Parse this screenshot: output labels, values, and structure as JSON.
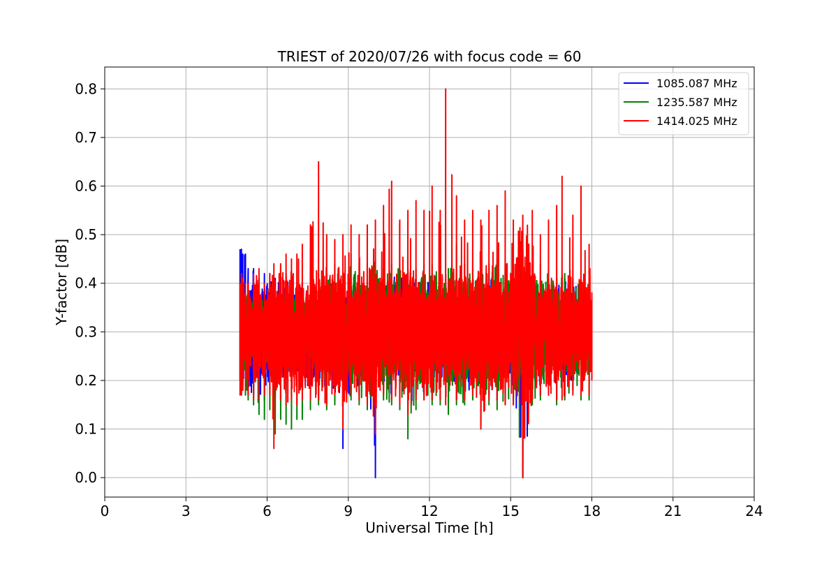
{
  "chart_data": {
    "type": "line",
    "title": "TRIEST of 2020/07/26 with focus code = 60",
    "xlabel": "Universal Time [h]",
    "ylabel": "Y-factor [dB]",
    "xlim": [
      0,
      24
    ],
    "ylim": [
      -0.04,
      0.845
    ],
    "xticks": [
      0,
      3,
      6,
      9,
      12,
      15,
      18,
      21,
      24
    ],
    "xtick_labels": [
      "0",
      "3",
      "6",
      "9",
      "12",
      "15",
      "18",
      "21",
      "24"
    ],
    "yticks": [
      0.0,
      0.1,
      0.2,
      0.3,
      0.4,
      0.5,
      0.6,
      0.7,
      0.8
    ],
    "ytick_labels": [
      "0.0",
      "0.1",
      "0.2",
      "0.3",
      "0.4",
      "0.5",
      "0.6",
      "0.7",
      "0.8"
    ],
    "grid": true,
    "legend_position": "top-right",
    "series": [
      {
        "name": "1085.087 MHz",
        "color": "#0000ff",
        "x": [
          5.0,
          5.05,
          5.1,
          5.2,
          5.3,
          5.5,
          5.7,
          5.9,
          6.1,
          6.3,
          6.5,
          6.7,
          6.9,
          7.1,
          7.3,
          7.6,
          7.9,
          8.2,
          8.5,
          8.8,
          9.1,
          9.4,
          9.7,
          10.0,
          10.3,
          10.6,
          10.9,
          11.2,
          11.5,
          11.8,
          12.1,
          12.4,
          12.7,
          13.0,
          13.3,
          13.6,
          13.9,
          14.2,
          14.5,
          14.8,
          15.1,
          15.45,
          15.8,
          16.1,
          16.4,
          16.7,
          17.0,
          17.3,
          17.6,
          17.9,
          18.0
        ],
        "low": [
          0.2,
          0.18,
          0.19,
          0.18,
          0.17,
          0.17,
          0.17,
          0.16,
          0.18,
          0.17,
          0.16,
          0.18,
          0.17,
          0.17,
          0.18,
          0.17,
          0.16,
          0.16,
          0.18,
          0.06,
          0.18,
          0.17,
          0.16,
          0.0,
          0.18,
          0.17,
          0.16,
          0.14,
          0.17,
          0.17,
          0.16,
          0.16,
          0.14,
          0.16,
          0.17,
          0.18,
          0.16,
          0.17,
          0.16,
          0.16,
          0.16,
          0.0,
          0.16,
          0.17,
          0.18,
          0.16,
          0.17,
          0.18,
          0.17,
          0.2,
          0.23
        ],
        "high": [
          0.47,
          0.47,
          0.46,
          0.46,
          0.43,
          0.43,
          0.41,
          0.42,
          0.42,
          0.41,
          0.41,
          0.42,
          0.41,
          0.4,
          0.4,
          0.4,
          0.41,
          0.41,
          0.42,
          0.4,
          0.41,
          0.41,
          0.4,
          0.41,
          0.41,
          0.41,
          0.42,
          0.41,
          0.41,
          0.41,
          0.42,
          0.41,
          0.41,
          0.41,
          0.4,
          0.4,
          0.41,
          0.41,
          0.42,
          0.41,
          0.41,
          0.4,
          0.41,
          0.41,
          0.41,
          0.41,
          0.41,
          0.41,
          0.4,
          0.4,
          0.38
        ]
      },
      {
        "name": "1235.587 MHz",
        "color": "#008000",
        "x": [
          5.0,
          5.05,
          5.1,
          5.2,
          5.3,
          5.5,
          5.7,
          5.9,
          6.1,
          6.3,
          6.5,
          6.7,
          6.9,
          7.1,
          7.3,
          7.6,
          7.9,
          8.2,
          8.5,
          8.8,
          9.1,
          9.4,
          9.7,
          10.0,
          10.3,
          10.6,
          10.9,
          11.2,
          11.5,
          11.8,
          12.1,
          12.4,
          12.7,
          13.0,
          13.3,
          13.6,
          13.9,
          14.2,
          14.5,
          14.8,
          15.1,
          15.45,
          15.8,
          16.1,
          16.4,
          16.7,
          17.0,
          17.3,
          17.6,
          17.9,
          18.0
        ],
        "low": [
          0.2,
          0.17,
          0.18,
          0.17,
          0.16,
          0.15,
          0.13,
          0.12,
          0.14,
          0.09,
          0.12,
          0.11,
          0.1,
          0.12,
          0.12,
          0.14,
          0.15,
          0.14,
          0.15,
          0.15,
          0.16,
          0.15,
          0.14,
          0.1,
          0.16,
          0.15,
          0.14,
          0.08,
          0.14,
          0.16,
          0.15,
          0.15,
          0.13,
          0.15,
          0.15,
          0.16,
          0.1,
          0.15,
          0.14,
          0.15,
          0.15,
          0.0,
          0.15,
          0.16,
          0.17,
          0.15,
          0.16,
          0.18,
          0.16,
          0.16,
          0.2
        ],
        "high": [
          0.4,
          0.42,
          0.4,
          0.39,
          0.38,
          0.38,
          0.38,
          0.38,
          0.39,
          0.38,
          0.38,
          0.39,
          0.38,
          0.39,
          0.38,
          0.39,
          0.42,
          0.41,
          0.44,
          0.43,
          0.46,
          0.44,
          0.44,
          0.45,
          0.43,
          0.44,
          0.44,
          0.43,
          0.43,
          0.44,
          0.44,
          0.44,
          0.43,
          0.48,
          0.44,
          0.43,
          0.44,
          0.44,
          0.45,
          0.44,
          0.43,
          0.43,
          0.44,
          0.44,
          0.43,
          0.43,
          0.42,
          0.41,
          0.42,
          0.41,
          0.38
        ]
      },
      {
        "name": "1414.025 MHz",
        "color": "#ff0000",
        "x": [
          5.0,
          5.05,
          5.1,
          5.2,
          5.3,
          5.5,
          5.7,
          5.9,
          6.1,
          6.25,
          6.5,
          6.7,
          6.9,
          7.1,
          7.3,
          7.6,
          7.9,
          8.2,
          8.5,
          8.8,
          9.1,
          9.4,
          9.7,
          10.0,
          10.3,
          10.6,
          10.9,
          11.2,
          11.5,
          11.8,
          12.1,
          12.4,
          12.6,
          13.0,
          13.3,
          13.6,
          13.9,
          14.2,
          14.5,
          14.8,
          15.1,
          15.45,
          15.8,
          16.1,
          16.4,
          16.7,
          16.9,
          17.3,
          17.6,
          17.9,
          18.0
        ],
        "low": [
          0.17,
          0.17,
          0.18,
          0.18,
          0.17,
          0.16,
          0.16,
          0.17,
          0.17,
          0.06,
          0.16,
          0.15,
          0.16,
          0.15,
          0.16,
          0.16,
          0.16,
          0.15,
          0.17,
          0.1,
          0.17,
          0.16,
          0.15,
          0.09,
          0.17,
          0.16,
          0.15,
          0.13,
          0.16,
          0.16,
          0.16,
          0.16,
          0.15,
          0.16,
          0.16,
          0.17,
          0.1,
          0.16,
          0.16,
          0.15,
          0.15,
          0.0,
          0.16,
          0.17,
          0.17,
          0.16,
          0.16,
          0.17,
          0.17,
          0.17,
          0.2
        ],
        "high": [
          0.4,
          0.42,
          0.41,
          0.4,
          0.4,
          0.42,
          0.43,
          0.4,
          0.42,
          0.44,
          0.44,
          0.46,
          0.45,
          0.46,
          0.48,
          0.52,
          0.65,
          0.5,
          0.49,
          0.5,
          0.52,
          0.5,
          0.52,
          0.53,
          0.56,
          0.61,
          0.53,
          0.55,
          0.57,
          0.55,
          0.6,
          0.55,
          0.8,
          0.58,
          0.53,
          0.55,
          0.53,
          0.55,
          0.56,
          0.59,
          0.53,
          0.54,
          0.55,
          0.5,
          0.53,
          0.56,
          0.62,
          0.54,
          0.6,
          0.48,
          0.38
        ]
      }
    ]
  }
}
